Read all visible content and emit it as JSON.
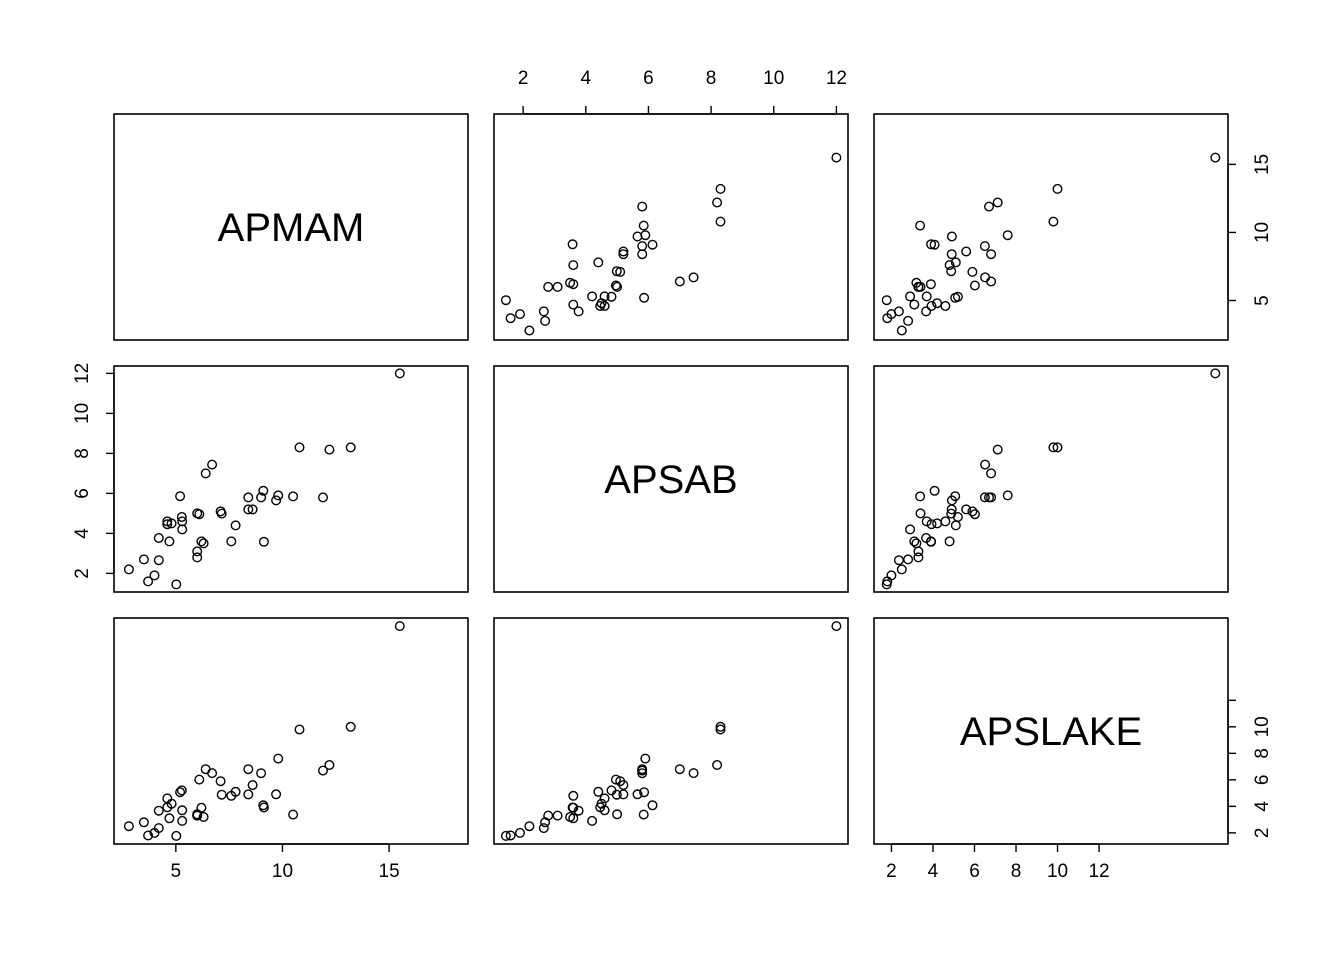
{
  "chart_data": {
    "type": "scatter",
    "variables": [
      "APMAM",
      "APSAB",
      "APSLAKE"
    ],
    "data": {
      "APMAM": [
        9.13,
        5.28,
        4.2,
        4.6,
        7.15,
        9.7,
        5.02,
        6.7,
        10.5,
        9.1,
        15.5,
        5.2,
        6.1,
        12.2,
        11.9,
        4.2,
        7.8,
        8.6,
        9.0,
        6.0,
        2.8,
        6.2,
        10.8,
        4.7,
        4.6,
        8.4,
        4.8,
        6.0,
        7.6,
        4.0,
        6.4,
        9.8,
        6.3,
        3.7,
        5.3,
        13.2,
        8.4,
        3.5,
        7.1,
        6.0,
        5.3
      ],
      "APSAB": [
        3.58,
        4.82,
        3.77,
        4.46,
        4.99,
        5.65,
        1.45,
        7.44,
        5.85,
        6.13,
        12.0,
        5.86,
        4.96,
        8.19,
        5.8,
        2.66,
        4.4,
        5.2,
        5.8,
        5.0,
        2.2,
        3.6,
        8.3,
        3.6,
        4.6,
        5.2,
        4.5,
        2.8,
        3.6,
        1.9,
        7.0,
        5.9,
        3.5,
        1.6,
        4.6,
        8.3,
        5.8,
        2.7,
        5.1,
        3.1,
        4.2
      ],
      "APSLAKE": [
        3.91,
        5.2,
        3.67,
        3.93,
        4.88,
        4.91,
        1.77,
        6.51,
        3.38,
        4.08,
        17.6,
        5.07,
        6.02,
        7.12,
        6.7,
        2.36,
        5.1,
        5.6,
        6.5,
        3.4,
        2.5,
        3.9,
        9.8,
        3.1,
        4.6,
        4.9,
        4.2,
        3.3,
        4.8,
        2.0,
        6.8,
        7.6,
        3.2,
        1.8,
        3.7,
        10.0,
        6.8,
        2.8,
        5.9,
        3.3,
        2.9
      ]
    },
    "axes": {
      "APMAM": {
        "ticks": [
          5,
          10,
          15
        ],
        "tick_labels": [
          "5",
          "10",
          "15"
        ],
        "range": [
          2.1,
          18.7
        ]
      },
      "APSAB": {
        "ticks": [
          2,
          4,
          6,
          8,
          10,
          12
        ],
        "tick_labels": [
          "2",
          "4",
          "6",
          "8",
          "10",
          "12"
        ],
        "range": [
          1.07,
          12.37
        ]
      },
      "APSLAKE": {
        "ticks": [
          2,
          4,
          6,
          8,
          10,
          12
        ],
        "tick_labels": [
          "2",
          "4",
          "6",
          "8",
          "10",
          "12"
        ],
        "range": [
          1.16,
          18.21
        ]
      }
    },
    "secondary_axes": {
      "APSLAKE_y_upper": {
        "ticks": [
          5,
          10,
          15
        ],
        "tick_labels": [
          "5",
          "10",
          "15"
        ]
      }
    },
    "grid": false,
    "legend": "none"
  }
}
